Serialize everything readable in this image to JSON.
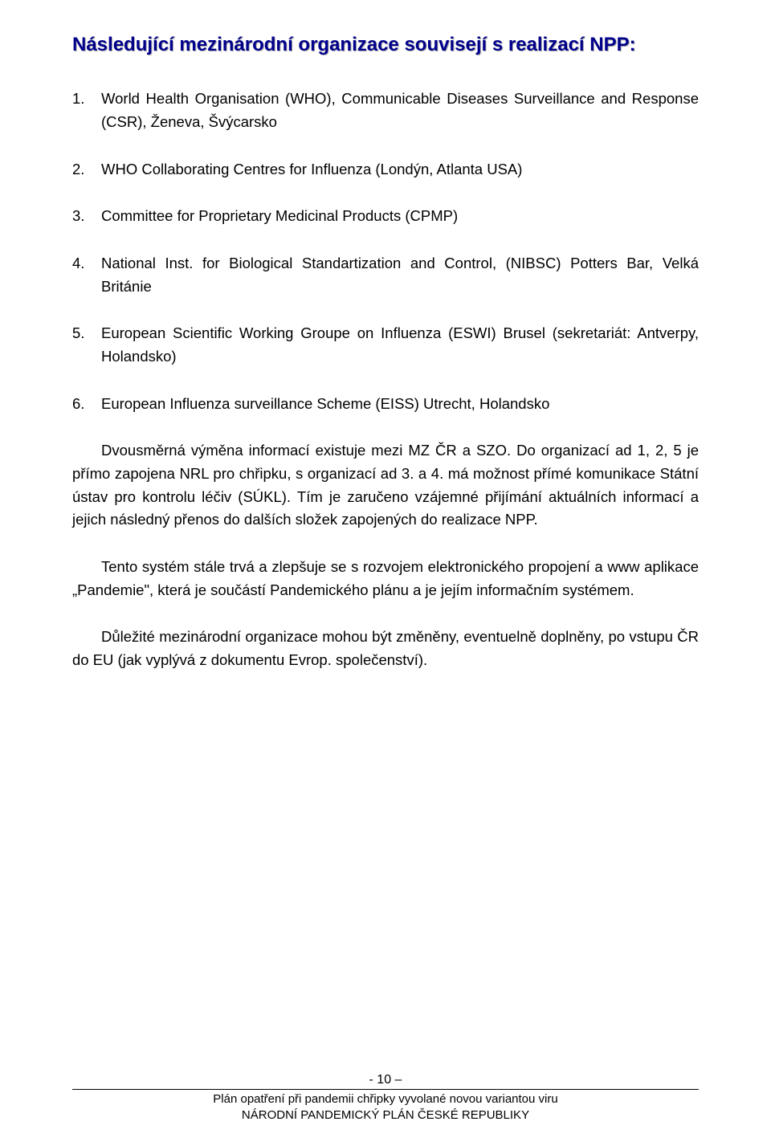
{
  "title": "Následující mezinárodní organizace souvisejí s realizací NPP:",
  "title_color": "#00008b",
  "title_shadow": "#aaaaaa",
  "title_fontsize": 24,
  "body_fontsize": 18.5,
  "body_lineheight": 1.55,
  "background_color": "#ffffff",
  "text_color": "#000000",
  "list": [
    {
      "num": "1.",
      "text": "World Health Organisation (WHO), Communicable Diseases Surveillance and Response (CSR), Ženeva, Švýcarsko"
    },
    {
      "num": "2.",
      "text": "WHO Collaborating Centres for Influenza  (Londýn, Atlanta USA)"
    },
    {
      "num": "3.",
      "text": "Committee for Proprietary Medicinal Products (CPMP)"
    },
    {
      "num": "4.",
      "text": "National Inst. for Biological Standartization and Control, (NIBSC) Potters Bar, Velká Británie"
    },
    {
      "num": "5.",
      "text": "European Scientific Working Groupe on Influenza (ESWI) Brusel (sekretariát: Antverpy, Holandsko)"
    },
    {
      "num": "6.",
      "text": "European Influenza surveillance Scheme (EISS) Utrecht, Holandsko"
    }
  ],
  "paragraphs": [
    "Dvousměrná výměna informací existuje mezi MZ ČR a SZO. Do organizací ad 1, 2, 5 je přímo zapojena NRL pro chřipku, s  organizací ad 3. a 4. má možnost přímé komunikace Státní ústav pro kontrolu léčiv (SÚKL). Tím je zaručeno vzájemné přijímání aktuálních informací a jejich následný přenos do dalších složek zapojených do realizace NPP.",
    "Tento systém stále trvá a zlepšuje se s rozvojem elektronického propojení a www aplikace „Pandemie\", která je součástí Pandemického plánu a je jejím informačním systémem.",
    "Důležité mezinárodní organizace mohou být změněny, eventuelně doplněny, po vstupu ČR do EU (jak vyplývá z dokumentu Evrop. společenství)."
  ],
  "footer": {
    "page_number": "- 10 –",
    "line1": "Plán opatření při pandemii chřipky vyvolané novou variantou viru",
    "line2": "NÁRODNÍ PANDEMICKÝ PLÁN ČESKÉ REPUBLIKY"
  }
}
